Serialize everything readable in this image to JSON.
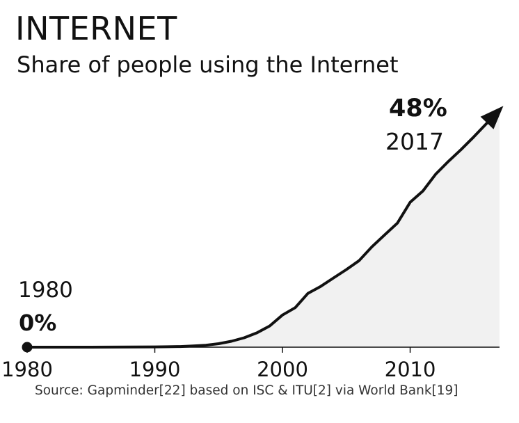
{
  "title": "INTERNET",
  "subtitle": "Share of people using the Internet",
  "source": "Source: Gapminder[22] based on ISC & ITU[2] via World Bank[19]",
  "colors": {
    "line": "#111111",
    "area": "#f1f1f1",
    "axis": "#111111"
  },
  "chart_data": {
    "type": "area",
    "title": "INTERNET",
    "subtitle": "Share of people using the Internet",
    "xlabel": "",
    "ylabel": "",
    "xlim": [
      1980,
      2017
    ],
    "ylim": [
      0,
      48
    ],
    "grid": false,
    "legend": "none",
    "x_ticks": [
      1980,
      1990,
      2000,
      2010
    ],
    "series": [
      {
        "name": "",
        "x": [
          1980,
          1985,
          1990,
          1991,
          1992,
          1993,
          1994,
          1995,
          1996,
          1997,
          1998,
          1999,
          2000,
          2001,
          2002,
          2003,
          2004,
          2005,
          2006,
          2007,
          2008,
          2009,
          2010,
          2011,
          2012,
          2013,
          2014,
          2015,
          2016,
          2017
        ],
        "y": [
          0,
          0,
          0.05,
          0.08,
          0.13,
          0.25,
          0.4,
          0.7,
          1.2,
          1.9,
          2.9,
          4.3,
          6.5,
          8.0,
          10.9,
          12.3,
          14.0,
          15.7,
          17.5,
          20.3,
          22.7,
          25.1,
          29.3,
          31.6,
          35.0,
          37.6,
          40.0,
          42.6,
          45.3,
          48.0
        ]
      }
    ],
    "annotations": {
      "start_year": "1980",
      "start_value": "0%",
      "end_year": "2017",
      "end_value": "48%"
    }
  }
}
